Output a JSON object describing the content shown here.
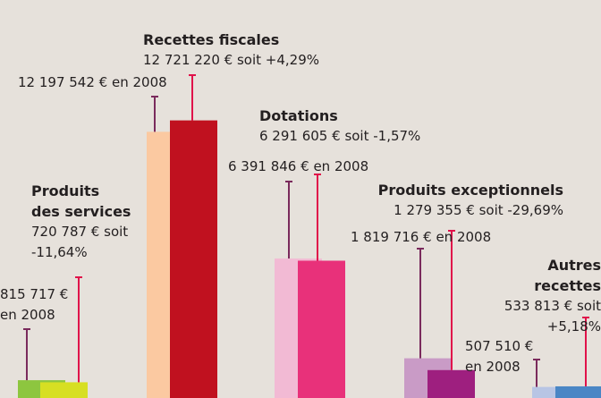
{
  "chart_data": {
    "type": "bar",
    "categories": [
      "Produits des services",
      "Recettes fiscales",
      "Dotations",
      "Produits exceptionnels",
      "Autres recettes"
    ],
    "series": [
      {
        "name": "en 2008",
        "colors": [
          "#8dc63f",
          "#fbc9a1",
          "#f2bad4",
          "#c99bc6",
          "#b8c5e4"
        ],
        "values": [
          815717,
          12197542,
          6391846,
          1819716,
          507510
        ],
        "value_labels": [
          "815 717 €",
          "12 197 542 €",
          "6 391 846 €",
          "1 819 716 €",
          "507 510 €"
        ]
      },
      {
        "colors": [
          "#d7df23",
          "#c0111f",
          "#e8317a",
          "#9e1f7f",
          "#4a86c5"
        ],
        "values": [
          720787,
          12721220,
          6291605,
          1279355,
          533813
        ],
        "value_labels": [
          "720 787 €",
          "12 721 220 €",
          "6 291 605 €",
          "1 279 355 €",
          "533 813 €"
        ],
        "changes": [
          "soit -11,64%",
          "soit +4,29%",
          "soit -1,57%",
          "soit -29,69%",
          "soit +5,18%"
        ]
      }
    ]
  }
}
